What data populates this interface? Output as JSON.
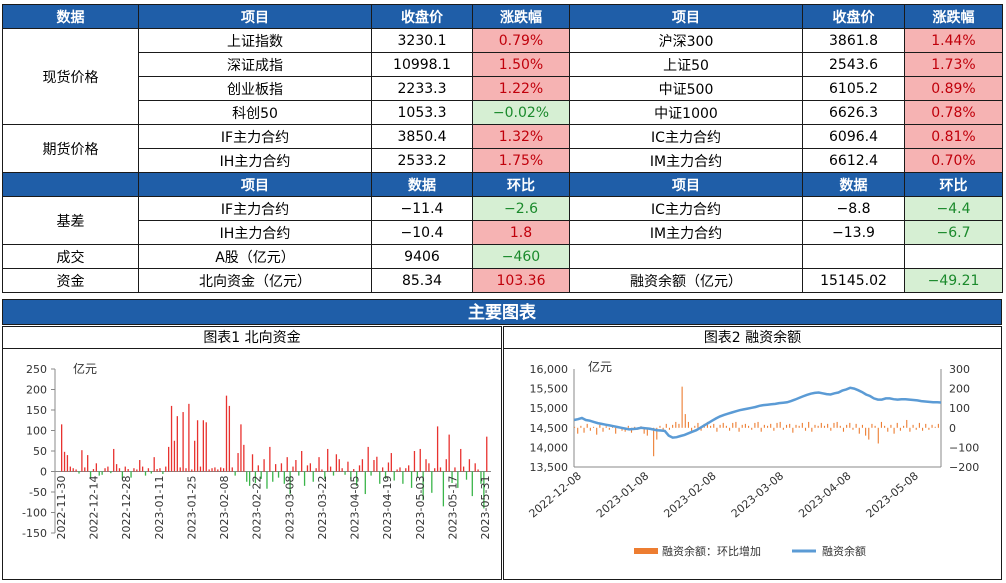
{
  "table": {
    "header1": [
      "数据",
      "项目",
      "收盘价",
      "涨跌幅",
      "项目",
      "收盘价",
      "涨跌幅"
    ],
    "spot_label": "现货价格",
    "spot_rows": [
      {
        "l_name": "上证指数",
        "l_close": "3230.1",
        "l_chg": "0.79%",
        "r_name": "沪深300",
        "r_close": "3861.8",
        "r_chg": "1.44%"
      },
      {
        "l_name": "深证成指",
        "l_close": "10998.1",
        "l_chg": "1.50%",
        "r_name": "上证50",
        "r_close": "2543.6",
        "r_chg": "1.73%"
      },
      {
        "l_name": "创业板指",
        "l_close": "2233.3",
        "l_chg": "1.22%",
        "r_name": "中证500",
        "r_close": "6105.2",
        "r_chg": "0.89%"
      },
      {
        "l_name": "科创50",
        "l_close": "1053.3",
        "l_chg": "−0.02%",
        "r_name": "中证1000",
        "r_close": "6626.3",
        "r_chg": "0.78%"
      }
    ],
    "futures_label": "期货价格",
    "futures_rows": [
      {
        "l_name": "IF主力合约",
        "l_close": "3850.4",
        "l_chg": "1.32%",
        "r_name": "IC主力合约",
        "r_close": "6096.4",
        "r_chg": "0.81%"
      },
      {
        "l_name": "IH主力合约",
        "l_close": "2533.2",
        "l_chg": "1.75%",
        "r_name": "IM主力合约",
        "r_close": "6612.4",
        "r_chg": "0.70%"
      }
    ],
    "header2": [
      "项目",
      "数据",
      "环比",
      "项目",
      "数据",
      "环比"
    ],
    "basis_label": "基差",
    "basis_rows": [
      {
        "l_name": "IF主力合约",
        "l_val": "−11.4",
        "l_chg": "−2.6",
        "r_name": "IC主力合约",
        "r_val": "−8.8",
        "r_chg": "−4.4"
      },
      {
        "l_name": "IH主力合约",
        "l_val": "−10.4",
        "l_chg": "1.8",
        "r_name": "IM主力合约",
        "r_val": "−13.9",
        "r_chg": "−6.7"
      }
    ],
    "volume_label": "成交",
    "volume_row": {
      "l_name": "A股（亿元）",
      "l_val": "9406",
      "l_chg": "−460"
    },
    "capital_label": "资金",
    "capital_row": {
      "l_name": "北向资金（亿元）",
      "l_val": "85.34",
      "l_chg": "103.36",
      "r_name": "融资余额（亿元）",
      "r_val": "15145.02",
      "r_chg": "−49.21"
    }
  },
  "banner": "主要图表",
  "colors": {
    "header_blue": "#1f5ea8",
    "up_red": "#e8322f",
    "down_green": "#3ab54a",
    "line_blue": "#5b9bd5",
    "bar_orange": "#ed7d31"
  },
  "chart_data": [
    {
      "type": "bar",
      "title": "图表1  北向资金",
      "ylabel": "亿元",
      "ylim": [
        -150,
        250
      ],
      "yticks": [
        250,
        200,
        150,
        100,
        50,
        0,
        -50,
        -100,
        -150
      ],
      "xticks": [
        "2022-11-30",
        "2022-12-14",
        "2022-12-28",
        "2023-01-11",
        "2023-01-25",
        "2023-02-08",
        "2023-02-22",
        "2023-03-08",
        "2023-03-22",
        "2023-04-05",
        "2023-04-19",
        "2023-05-03",
        "2023-05-17",
        "2023-05-31"
      ],
      "values": [
        115,
        48,
        40,
        12,
        8,
        5,
        -5,
        52,
        10,
        40,
        -15,
        6,
        20,
        -10,
        -8,
        8,
        12,
        -4,
        55,
        18,
        8,
        -20,
        12,
        6,
        -15,
        8,
        5,
        28,
        12,
        -10,
        8,
        -5,
        35,
        6,
        8,
        -6,
        12,
        60,
        160,
        75,
        135,
        10,
        145,
        8,
        165,
        5,
        75,
        125,
        12,
        125,
        120,
        5,
        8,
        10,
        5,
        10,
        8,
        185,
        160,
        10,
        -10,
        45,
        115,
        65,
        -25,
        -35,
        42,
        -28,
        15,
        -18,
        30,
        -42,
        60,
        -25,
        18,
        -15,
        20,
        -30,
        35,
        -55,
        12,
        28,
        -10,
        50,
        -35,
        15,
        20,
        -25,
        8,
        35,
        5,
        -18,
        55,
        12,
        -10,
        42,
        30,
        8,
        -8,
        24,
        -20,
        6,
        -35,
        15,
        30,
        -55,
        60,
        -10,
        28,
        36,
        -30,
        10,
        -18,
        22,
        45,
        -22,
        5,
        10,
        -30,
        8,
        15,
        -40,
        50,
        -15,
        55,
        -70,
        30,
        20,
        -52,
        8,
        110,
        10,
        -85,
        30,
        90,
        -28,
        10,
        -40,
        55,
        12,
        -20,
        30,
        -60,
        20,
        5,
        -30,
        -90,
        85
      ]
    },
    {
      "type": "bar+line",
      "title": "图表2  融资余额",
      "ylabel": "亿元",
      "left_ylim": [
        13500,
        16000
      ],
      "left_yticks": [
        "16,000",
        "15,500",
        "15,000",
        "14,500",
        "14,000",
        "13,500"
      ],
      "right_ylim": [
        -200,
        300
      ],
      "right_yticks": [
        "300",
        "200",
        "100",
        "0",
        "−100",
        "−200"
      ],
      "xticks": [
        "2022-12-08",
        "2023-01-08",
        "2023-02-08",
        "2023-03-08",
        "2023-04-08",
        "2023-05-08"
      ],
      "series": [
        {
          "name": "融资余额：环比增加",
          "type": "bar",
          "axis": "right",
          "values": [
            5,
            -30,
            10,
            -25,
            20,
            -15,
            5,
            -35,
            15,
            -20,
            8,
            -10,
            12,
            -30,
            6,
            -15,
            -20,
            10,
            -25,
            5,
            -10,
            8,
            -30,
            -40,
            -10,
            -145,
            -60,
            10,
            -15,
            20,
            -10,
            15,
            30,
            20,
            210,
            70,
            30,
            -20,
            10,
            25,
            -15,
            20,
            30,
            10,
            20,
            -20,
            15,
            25,
            10,
            -15,
            25,
            30,
            -20,
            15,
            20,
            10,
            -10,
            25,
            30,
            -20,
            15,
            10,
            20,
            -15,
            25,
            30,
            -10,
            15,
            20,
            -25,
            15,
            10,
            25,
            -15,
            30,
            -20,
            15,
            10,
            25,
            10,
            20,
            -15,
            25,
            30,
            10,
            -20,
            15,
            25,
            -10,
            20,
            -30,
            15,
            -40,
            -60,
            20,
            10,
            -80,
            30,
            10,
            -20,
            15,
            -30,
            25,
            -15,
            10,
            40,
            -20,
            15,
            -10,
            25,
            -15,
            20,
            -10,
            15,
            5,
            20
          ]
        },
        {
          "name": "融资余额",
          "type": "line",
          "axis": "left",
          "values": [
            14700,
            14720,
            14750,
            14700,
            14680,
            14650,
            14620,
            14600,
            14580,
            14560,
            14540,
            14520,
            14500,
            14480,
            14460,
            14470,
            14480,
            14500,
            14490,
            14480,
            14460,
            14440,
            14430,
            14420,
            14300,
            14250,
            14260,
            14290,
            14320,
            14360,
            14400,
            14440,
            14500,
            14560,
            14620,
            14680,
            14740,
            14790,
            14830,
            14860,
            14890,
            14920,
            14950,
            14970,
            14990,
            15010,
            15030,
            15060,
            15080,
            15090,
            15100,
            15110,
            15130,
            15140,
            15150,
            15180,
            15220,
            15260,
            15300,
            15340,
            15370,
            15390,
            15400,
            15380,
            15360,
            15350,
            15380,
            15400,
            15450,
            15480,
            15520,
            15500,
            15460,
            15410,
            15350,
            15310,
            15250,
            15220,
            15220,
            15250,
            15250,
            15230,
            15220,
            15230,
            15230,
            15220,
            15210,
            15200,
            15180,
            15170,
            15160,
            15150,
            15150,
            15145
          ]
        }
      ],
      "legend_position": "bottom"
    }
  ]
}
